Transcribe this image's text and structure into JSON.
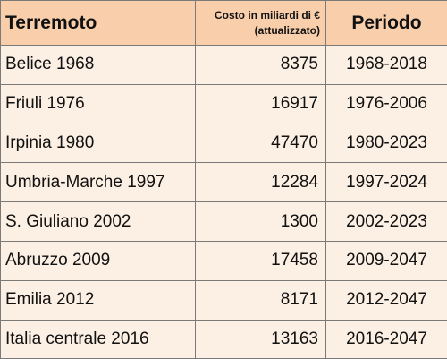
{
  "table": {
    "headers": {
      "earthquake": "Terremoto",
      "cost_line1": "Costo in miliardi di €",
      "cost_line2": "(attualizzato)",
      "period": "Periodo"
    },
    "rows": [
      {
        "earthquake": "Belice 1968",
        "cost": "8375",
        "period": "1968-2018"
      },
      {
        "earthquake": "Friuli 1976",
        "cost": "16917",
        "period": "1976-2006"
      },
      {
        "earthquake": "Irpinia 1980",
        "cost": "47470",
        "period": "1980-2023"
      },
      {
        "earthquake": "Umbria-Marche 1997",
        "cost": "12284",
        "period": "1997-2024"
      },
      {
        "earthquake": "S. Giuliano 2002",
        "cost": "1300",
        "period": "2002-2023"
      },
      {
        "earthquake": "Abruzzo 2009",
        "cost": "17458",
        "period": "2009-2047"
      },
      {
        "earthquake": "Emilia 2012",
        "cost": "8171",
        "period": "2012-2047"
      },
      {
        "earthquake": "Italia centrale 2016",
        "cost": "13163",
        "period": "2016-2047"
      }
    ]
  },
  "colors": {
    "header_background": "#f8ceab",
    "cell_background": "#fcefe3",
    "border": "#7a7a7a"
  }
}
